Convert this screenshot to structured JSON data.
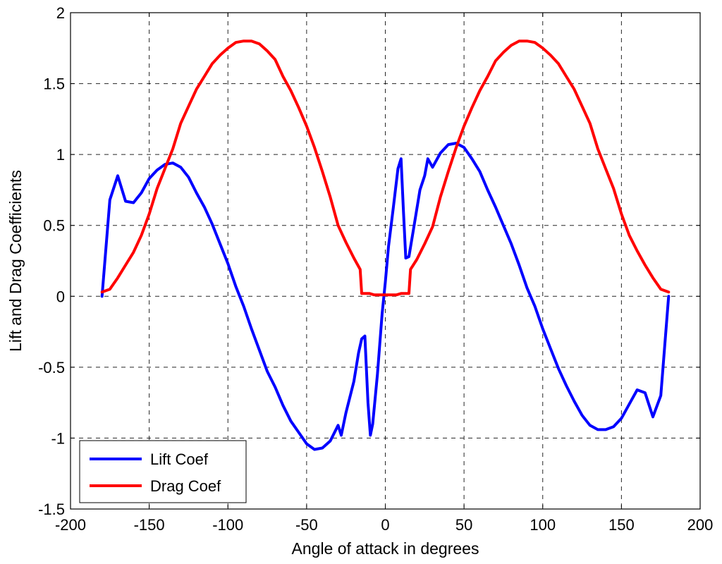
{
  "chart_data": {
    "type": "line",
    "title": "",
    "xlabel": "Angle of attack in degrees",
    "ylabel": "Lift and Drag Coefficients",
    "xlim": [
      -200,
      200
    ],
    "ylim": [
      -1.5,
      2
    ],
    "xticks": [
      -200,
      -150,
      -100,
      -50,
      0,
      50,
      100,
      150,
      200
    ],
    "xtick_labels": [
      "-200",
      "-150",
      "-100",
      "-50",
      "0",
      "50",
      "100",
      "150",
      "200"
    ],
    "yticks": [
      -1.5,
      -1,
      -0.5,
      0,
      0.5,
      1,
      1.5,
      2
    ],
    "ytick_labels": [
      "-1.5",
      "-1",
      "-0.5",
      "0",
      "0.5",
      "1",
      "1.5",
      "2"
    ],
    "grid": true,
    "legend_position": "bottom-left",
    "series": [
      {
        "name": "Lift Coef",
        "color": "#0000ff",
        "points": [
          [
            -180,
            0.0
          ],
          [
            -175,
            0.68
          ],
          [
            -170,
            0.85
          ],
          [
            -165,
            0.67
          ],
          [
            -160,
            0.66
          ],
          [
            -155,
            0.73
          ],
          [
            -150,
            0.83
          ],
          [
            -145,
            0.89
          ],
          [
            -140,
            0.93
          ],
          [
            -135,
            0.94
          ],
          [
            -130,
            0.91
          ],
          [
            -125,
            0.84
          ],
          [
            -120,
            0.73
          ],
          [
            -115,
            0.63
          ],
          [
            -110,
            0.51
          ],
          [
            -105,
            0.37
          ],
          [
            -100,
            0.23
          ],
          [
            -95,
            0.07
          ],
          [
            -90,
            -0.07
          ],
          [
            -85,
            -0.23
          ],
          [
            -80,
            -0.38
          ],
          [
            -75,
            -0.53
          ],
          [
            -70,
            -0.64
          ],
          [
            -65,
            -0.77
          ],
          [
            -60,
            -0.88
          ],
          [
            -55,
            -0.96
          ],
          [
            -50,
            -1.04
          ],
          [
            -45,
            -1.08
          ],
          [
            -40,
            -1.07
          ],
          [
            -35,
            -1.02
          ],
          [
            -30,
            -0.91
          ],
          [
            -28,
            -0.98
          ],
          [
            -25,
            -0.82
          ],
          [
            -20,
            -0.6
          ],
          [
            -17,
            -0.4
          ],
          [
            -15,
            -0.3
          ],
          [
            -13,
            -0.28
          ],
          [
            -11,
            -0.75
          ],
          [
            -9.5,
            -0.98
          ],
          [
            -8,
            -0.9
          ],
          [
            -5,
            -0.55
          ],
          [
            -2,
            -0.12
          ],
          [
            0,
            0.1
          ],
          [
            2,
            0.35
          ],
          [
            5,
            0.62
          ],
          [
            8,
            0.9
          ],
          [
            10,
            0.97
          ],
          [
            11.5,
            0.6
          ],
          [
            13,
            0.27
          ],
          [
            15,
            0.28
          ],
          [
            18,
            0.48
          ],
          [
            22,
            0.75
          ],
          [
            25,
            0.85
          ],
          [
            27,
            0.97
          ],
          [
            30,
            0.91
          ],
          [
            35,
            1.01
          ],
          [
            40,
            1.07
          ],
          [
            45,
            1.08
          ],
          [
            50,
            1.05
          ],
          [
            55,
            0.97
          ],
          [
            60,
            0.88
          ],
          [
            65,
            0.75
          ],
          [
            70,
            0.63
          ],
          [
            75,
            0.5
          ],
          [
            80,
            0.37
          ],
          [
            85,
            0.22
          ],
          [
            90,
            0.06
          ],
          [
            95,
            -0.07
          ],
          [
            100,
            -0.23
          ],
          [
            105,
            -0.37
          ],
          [
            110,
            -0.51
          ],
          [
            115,
            -0.63
          ],
          [
            120,
            -0.74
          ],
          [
            125,
            -0.84
          ],
          [
            130,
            -0.91
          ],
          [
            135,
            -0.94
          ],
          [
            140,
            -0.94
          ],
          [
            145,
            -0.92
          ],
          [
            150,
            -0.86
          ],
          [
            155,
            -0.76
          ],
          [
            160,
            -0.66
          ],
          [
            165,
            -0.68
          ],
          [
            170,
            -0.85
          ],
          [
            175,
            -0.7
          ],
          [
            180,
            0.0
          ]
        ]
      },
      {
        "name": "Drag Coef",
        "color": "#ff0000",
        "points": [
          [
            -180,
            0.03
          ],
          [
            -175,
            0.05
          ],
          [
            -170,
            0.13
          ],
          [
            -165,
            0.22
          ],
          [
            -160,
            0.31
          ],
          [
            -155,
            0.43
          ],
          [
            -150,
            0.58
          ],
          [
            -145,
            0.76
          ],
          [
            -140,
            0.9
          ],
          [
            -135,
            1.04
          ],
          [
            -130,
            1.22
          ],
          [
            -125,
            1.34
          ],
          [
            -120,
            1.46
          ],
          [
            -115,
            1.55
          ],
          [
            -110,
            1.64
          ],
          [
            -105,
            1.7
          ],
          [
            -100,
            1.75
          ],
          [
            -95,
            1.79
          ],
          [
            -90,
            1.8
          ],
          [
            -85,
            1.8
          ],
          [
            -80,
            1.78
          ],
          [
            -75,
            1.73
          ],
          [
            -70,
            1.67
          ],
          [
            -65,
            1.55
          ],
          [
            -60,
            1.45
          ],
          [
            -55,
            1.33
          ],
          [
            -50,
            1.2
          ],
          [
            -45,
            1.05
          ],
          [
            -40,
            0.88
          ],
          [
            -35,
            0.7
          ],
          [
            -30,
            0.5
          ],
          [
            -25,
            0.38
          ],
          [
            -20,
            0.27
          ],
          [
            -16,
            0.19
          ],
          [
            -15,
            0.02
          ],
          [
            -10,
            0.02
          ],
          [
            -7,
            0.01
          ],
          [
            0,
            0.01
          ],
          [
            7,
            0.01
          ],
          [
            10,
            0.02
          ],
          [
            15,
            0.02
          ],
          [
            16,
            0.19
          ],
          [
            20,
            0.26
          ],
          [
            25,
            0.37
          ],
          [
            30,
            0.49
          ],
          [
            35,
            0.7
          ],
          [
            40,
            0.88
          ],
          [
            45,
            1.05
          ],
          [
            50,
            1.2
          ],
          [
            55,
            1.33
          ],
          [
            60,
            1.45
          ],
          [
            65,
            1.55
          ],
          [
            70,
            1.66
          ],
          [
            75,
            1.72
          ],
          [
            80,
            1.77
          ],
          [
            85,
            1.8
          ],
          [
            90,
            1.8
          ],
          [
            95,
            1.79
          ],
          [
            100,
            1.75
          ],
          [
            105,
            1.7
          ],
          [
            110,
            1.64
          ],
          [
            115,
            1.55
          ],
          [
            120,
            1.46
          ],
          [
            125,
            1.34
          ],
          [
            130,
            1.22
          ],
          [
            135,
            1.04
          ],
          [
            140,
            0.9
          ],
          [
            145,
            0.76
          ],
          [
            150,
            0.58
          ],
          [
            155,
            0.43
          ],
          [
            160,
            0.32
          ],
          [
            165,
            0.22
          ],
          [
            170,
            0.13
          ],
          [
            175,
            0.05
          ],
          [
            180,
            0.03
          ]
        ]
      }
    ]
  }
}
